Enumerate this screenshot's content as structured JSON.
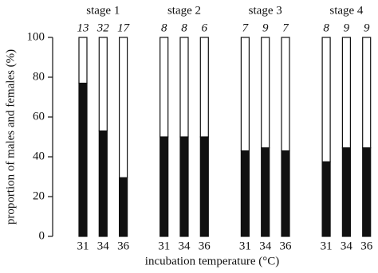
{
  "chart_data": {
    "type": "stacked_bar",
    "ylabel": "proportion of males and females (%)",
    "xlabel": "incubation temperature (°C)",
    "groups": [
      "stage 1",
      "stage 2",
      "stage 3",
      "stage 4"
    ],
    "categories": [
      "31",
      "34",
      "36",
      "31",
      "34",
      "36",
      "31",
      "34",
      "36",
      "31",
      "34",
      "36"
    ],
    "sample_sizes": [
      "13",
      "32",
      "17",
      "8",
      "8",
      "6",
      "7",
      "9",
      "7",
      "8",
      "9",
      "9"
    ],
    "series": [
      {
        "color": "#111111",
        "values": [
          77,
          53,
          29.5,
          50,
          50,
          50,
          43,
          44.5,
          43,
          37.5,
          44.5,
          44.5
        ]
      },
      {
        "color": "#ffffff",
        "values": [
          23,
          47,
          70.5,
          50,
          50,
          50,
          57,
          55.5,
          57,
          62.5,
          55.5,
          55.5
        ]
      }
    ],
    "ylim": [
      0,
      100
    ],
    "yticks": [
      0,
      20,
      40,
      60,
      80,
      100
    ]
  }
}
